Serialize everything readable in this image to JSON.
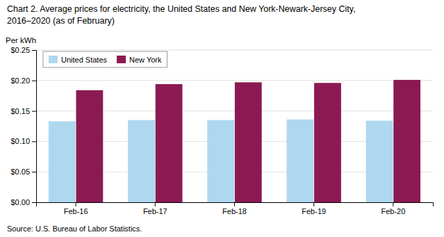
{
  "chart_data": {
    "type": "bar",
    "title": "Chart 2. Average prices for electricity, the United States and New York-Newark-Jersey  City,",
    "subtitle": "2016–2020  (as of February)",
    "y_label": "Per kWh",
    "source": "Source: U.S. Bureau of Labor Statistics.",
    "categories": [
      "Feb-16",
      "Feb-17",
      "Feb-18",
      "Feb-19",
      "Feb-20"
    ],
    "series": [
      {
        "name": "United States",
        "color": "#add8f0",
        "values": [
          0.133,
          0.135,
          0.135,
          0.136,
          0.134
        ]
      },
      {
        "name": "New York",
        "color": "#8b1a52",
        "values": [
          0.184,
          0.194,
          0.197,
          0.196,
          0.201
        ]
      }
    ],
    "ylim": [
      0.0,
      0.25
    ],
    "yticks": [
      {
        "value": 0.0,
        "label": "$0.00"
      },
      {
        "value": 0.05,
        "label": "$0.05"
      },
      {
        "value": 0.1,
        "label": "$0.10"
      },
      {
        "value": 0.15,
        "label": "$0.15"
      },
      {
        "value": 0.2,
        "label": "$0.20"
      },
      {
        "value": 0.25,
        "label": "$0.25"
      }
    ],
    "grid": true,
    "legend": "top-left"
  }
}
